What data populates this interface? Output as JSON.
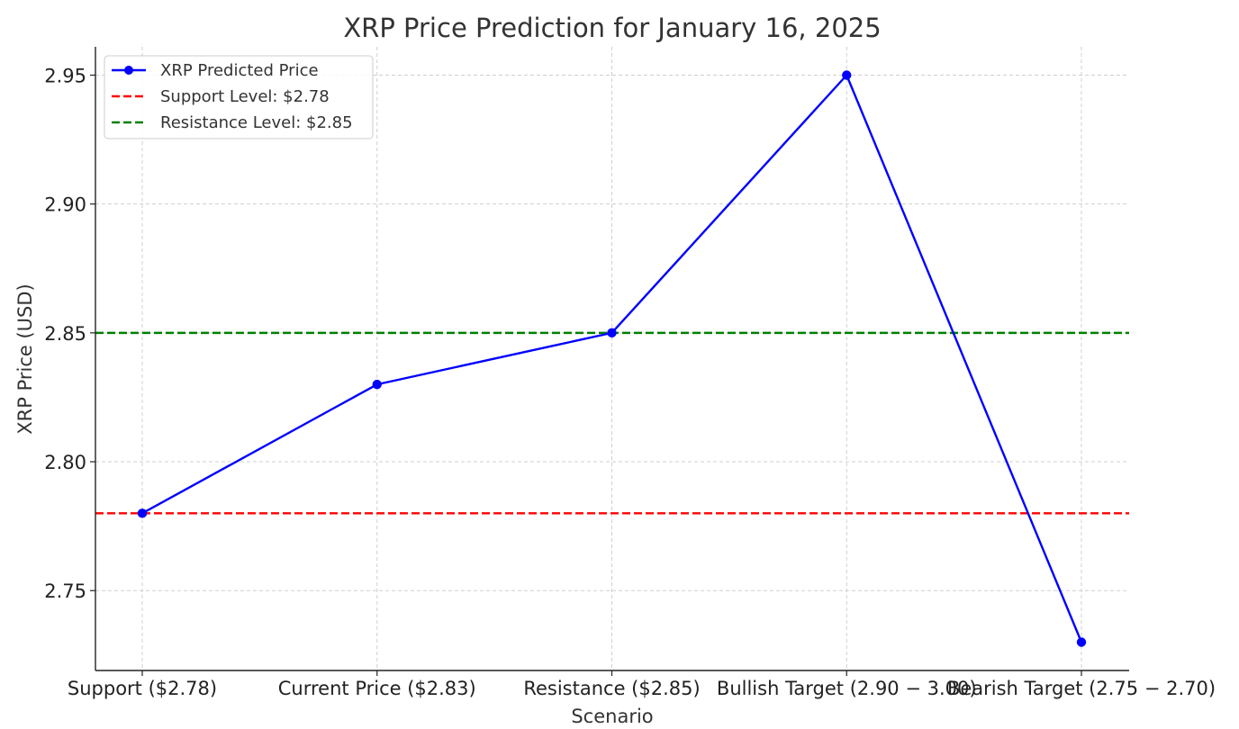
{
  "chart_data": {
    "type": "line",
    "title": "XRP Price Prediction for January 16, 2025",
    "xlabel": "Scenario",
    "ylabel": "XRP Price (USD)",
    "categories": [
      "Support ($2.78)",
      "Current Price ($2.83)",
      "Resistance ($2.85)",
      "Bullish Target (2.90 − 3.00)",
      "Bearish Target (2.75 − 2.70)"
    ],
    "series": [
      {
        "name": "XRP Predicted Price",
        "values": [
          2.78,
          2.83,
          2.85,
          2.95,
          2.73
        ],
        "color": "#0000ff",
        "marker": "circle"
      }
    ],
    "reference_lines": [
      {
        "name": "Support Level: $2.78",
        "value": 2.78,
        "color": "#ff0000",
        "style": "dashed"
      },
      {
        "name": "Resistance Level: $2.85",
        "value": 2.85,
        "color": "#008000",
        "style": "dashed"
      }
    ],
    "ylim": [
      2.719,
      2.961
    ],
    "yticks": [
      2.75,
      2.8,
      2.85,
      2.9,
      2.95
    ],
    "ytick_labels": [
      "2.75",
      "2.80",
      "2.85",
      "2.90",
      "2.95"
    ],
    "grid": true,
    "legend_position": "top-left"
  }
}
